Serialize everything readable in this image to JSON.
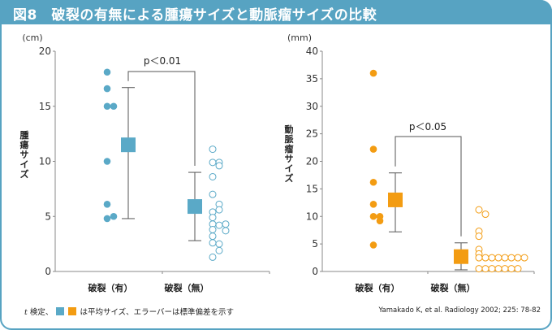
{
  "title": "図8　破裂の有無による腫瘍サイズと動脈瘤サイズの比較",
  "colors": {
    "frame": "#57a3c2",
    "blue": "#5aa9c7",
    "orange": "#f39c12",
    "axis": "#888888",
    "errorbar": "#555555"
  },
  "footnote": {
    "prefix_italic": "t",
    "text1": " 検定、",
    "text2": " は平均サイズ、エラーバーは標準偏差を示す"
  },
  "citation": "Yamakado K, et al. Radiology 2002; 225: 78-82",
  "chart_data": [
    {
      "type": "scatter",
      "title": "",
      "ylabel": "腫瘍サイズ",
      "unit": "(cm)",
      "ylim": [
        0,
        20
      ],
      "yticks": [
        0,
        5,
        10,
        15,
        20
      ],
      "categories": [
        "破裂（有）",
        "破裂（無）"
      ],
      "color": "#5aa9c7",
      "significance": "p＜0.01",
      "groups": [
        {
          "name": "破裂（有）",
          "filled": true,
          "points": [
            {
              "v": 18.1,
              "col": 0
            },
            {
              "v": 16.6,
              "col": 0
            },
            {
              "v": 15.0,
              "col": 0
            },
            {
              "v": 15.0,
              "col": 1
            },
            {
              "v": 10.0,
              "col": 0
            },
            {
              "v": 6.1,
              "col": 0
            },
            {
              "v": 4.8,
              "col": 0
            },
            {
              "v": 5.0,
              "col": 1
            }
          ],
          "mean": 11.5,
          "sd_low": 4.8,
          "sd_high": 16.7
        },
        {
          "name": "破裂（無）",
          "filled": false,
          "points": [
            {
              "v": 11.1,
              "col": 0
            },
            {
              "v": 9.9,
              "col": 0
            },
            {
              "v": 9.9,
              "col": 1
            },
            {
              "v": 9.6,
              "col": 1
            },
            {
              "v": 8.6,
              "col": 0
            },
            {
              "v": 7.0,
              "col": 0
            },
            {
              "v": 6.1,
              "col": 1
            },
            {
              "v": 5.6,
              "col": 1
            },
            {
              "v": 5.4,
              "col": 0
            },
            {
              "v": 4.9,
              "col": 0
            },
            {
              "v": 4.3,
              "col": 0
            },
            {
              "v": 4.2,
              "col": 1
            },
            {
              "v": 4.3,
              "col": 2
            },
            {
              "v": 3.7,
              "col": 2
            },
            {
              "v": 3.8,
              "col": 0
            },
            {
              "v": 3.2,
              "col": 0
            },
            {
              "v": 2.6,
              "col": 0
            },
            {
              "v": 2.5,
              "col": 1
            },
            {
              "v": 1.9,
              "col": 1
            },
            {
              "v": 1.3,
              "col": 0
            }
          ],
          "mean": 5.9,
          "sd_low": 2.8,
          "sd_high": 9.0
        }
      ]
    },
    {
      "type": "scatter",
      "title": "",
      "ylabel": "動脈瘤サイズ",
      "unit": "(mm)",
      "ylim": [
        0,
        40
      ],
      "yticks": [
        0,
        5,
        10,
        15,
        20,
        25,
        30,
        35,
        40
      ],
      "categories": [
        "破裂（有）",
        "破裂（無）"
      ],
      "color": "#f39c12",
      "significance": "p＜0.05",
      "groups": [
        {
          "name": "破裂（有）",
          "filled": true,
          "points": [
            {
              "v": 36.0,
              "col": 0
            },
            {
              "v": 22.2,
              "col": 0
            },
            {
              "v": 16.2,
              "col": 0
            },
            {
              "v": 12.2,
              "col": 0
            },
            {
              "v": 10.0,
              "col": 0
            },
            {
              "v": 10.0,
              "col": 1
            },
            {
              "v": 9.2,
              "col": 1
            },
            {
              "v": 4.8,
              "col": 0
            }
          ],
          "mean": 13.0,
          "sd_low": 7.2,
          "sd_high": 17.9
        },
        {
          "name": "破裂（無）",
          "filled": false,
          "points": [
            {
              "v": 11.2,
              "col": 0
            },
            {
              "v": 10.4,
              "col": 1
            },
            {
              "v": 7.3,
              "col": 0
            },
            {
              "v": 6.4,
              "col": 0
            },
            {
              "v": 4.0,
              "col": 0
            },
            {
              "v": 3.2,
              "col": 0
            },
            {
              "v": 2.5,
              "col": 0
            },
            {
              "v": 2.5,
              "col": 1
            },
            {
              "v": 2.5,
              "col": 2
            },
            {
              "v": 2.5,
              "col": 3
            },
            {
              "v": 2.5,
              "col": 4
            },
            {
              "v": 2.5,
              "col": 5
            },
            {
              "v": 2.5,
              "col": 6
            },
            {
              "v": 2.5,
              "col": 7
            },
            {
              "v": 0.5,
              "col": 0
            },
            {
              "v": 0.5,
              "col": 1
            },
            {
              "v": 0.5,
              "col": 2
            },
            {
              "v": 0.5,
              "col": 3
            },
            {
              "v": 0.5,
              "col": 4
            },
            {
              "v": 0.5,
              "col": 5
            },
            {
              "v": 0.5,
              "col": 6
            }
          ],
          "mean": 2.7,
          "sd_low": 0.3,
          "sd_high": 5.2
        }
      ]
    }
  ]
}
